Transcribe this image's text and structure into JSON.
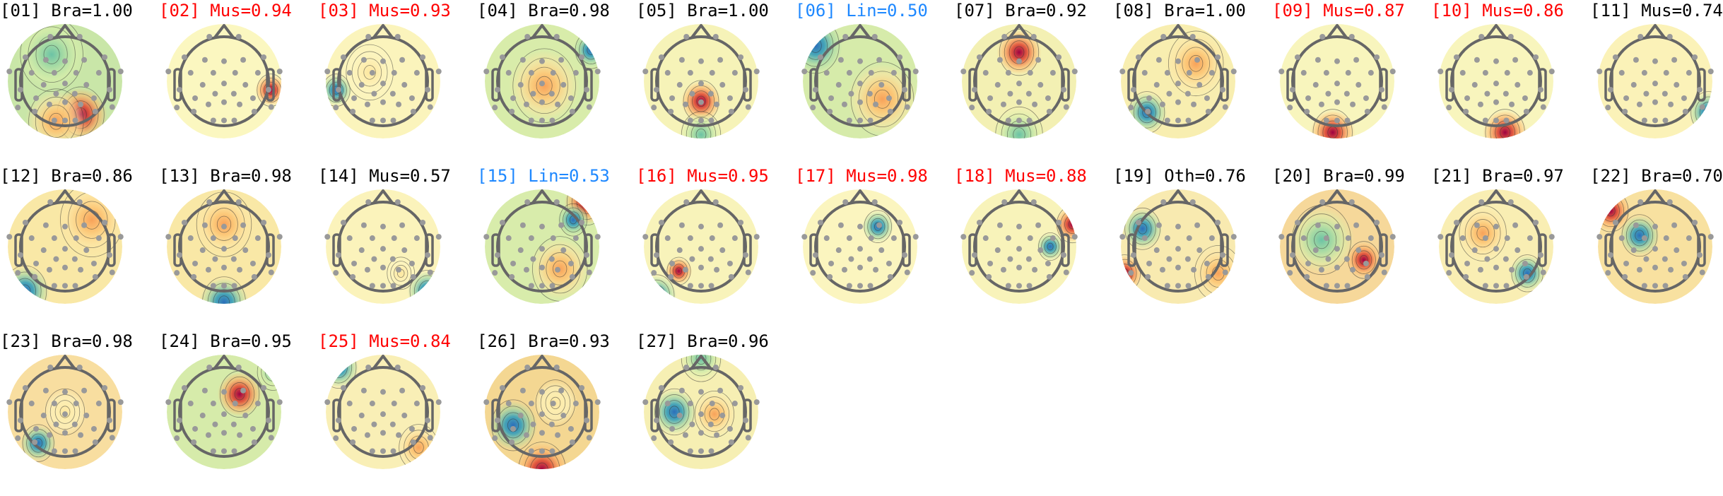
{
  "chart_data": {
    "type": "heatmap",
    "description_kind": "ICA component scalp topographies",
    "label_colors": {
      "black": "#000000",
      "red": "#ff0000",
      "blue": "#1e88ff"
    },
    "components": [
      {
        "title": "[01] Bra=1.00",
        "index": 1,
        "label": "Bra",
        "score": 1.0,
        "color": "#000000"
      },
      {
        "title": "[02] Mus=0.94",
        "index": 2,
        "label": "Mus",
        "score": 0.94,
        "color": "#ff0000"
      },
      {
        "title": "[03] Mus=0.93",
        "index": 3,
        "label": "Mus",
        "score": 0.93,
        "color": "#ff0000"
      },
      {
        "title": "[04] Bra=0.98",
        "index": 4,
        "label": "Bra",
        "score": 0.98,
        "color": "#000000"
      },
      {
        "title": "[05] Bra=1.00",
        "index": 5,
        "label": "Bra",
        "score": 1.0,
        "color": "#000000"
      },
      {
        "title": "[06] Lin=0.50",
        "index": 6,
        "label": "Lin",
        "score": 0.5,
        "color": "#1e88ff"
      },
      {
        "title": "[07] Bra=0.92",
        "index": 7,
        "label": "Bra",
        "score": 0.92,
        "color": "#000000"
      },
      {
        "title": "[08] Bra=1.00",
        "index": 8,
        "label": "Bra",
        "score": 1.0,
        "color": "#000000"
      },
      {
        "title": "[09] Mus=0.87",
        "index": 9,
        "label": "Mus",
        "score": 0.87,
        "color": "#ff0000"
      },
      {
        "title": "[10] Mus=0.86",
        "index": 10,
        "label": "Mus",
        "score": 0.86,
        "color": "#ff0000"
      },
      {
        "title": "[11] Mus=0.74",
        "index": 11,
        "label": "Mus",
        "score": 0.74,
        "color": "#000000"
      },
      {
        "title": "[12] Bra=0.86",
        "index": 12,
        "label": "Bra",
        "score": 0.86,
        "color": "#000000"
      },
      {
        "title": "[13] Bra=0.98",
        "index": 13,
        "label": "Bra",
        "score": 0.98,
        "color": "#000000"
      },
      {
        "title": "[14] Mus=0.57",
        "index": 14,
        "label": "Mus",
        "score": 0.57,
        "color": "#000000"
      },
      {
        "title": "[15] Lin=0.53",
        "index": 15,
        "label": "Lin",
        "score": 0.53,
        "color": "#1e88ff"
      },
      {
        "title": "[16] Mus=0.95",
        "index": 16,
        "label": "Mus",
        "score": 0.95,
        "color": "#ff0000"
      },
      {
        "title": "[17] Mus=0.98",
        "index": 17,
        "label": "Mus",
        "score": 0.98,
        "color": "#ff0000"
      },
      {
        "title": "[18] Mus=0.88",
        "index": 18,
        "label": "Mus",
        "score": 0.88,
        "color": "#ff0000"
      },
      {
        "title": "[19] Oth=0.76",
        "index": 19,
        "label": "Oth",
        "score": 0.76,
        "color": "#000000"
      },
      {
        "title": "[20] Bra=0.99",
        "index": 20,
        "label": "Bra",
        "score": 0.99,
        "color": "#000000"
      },
      {
        "title": "[21] Bra=0.97",
        "index": 21,
        "label": "Bra",
        "score": 0.97,
        "color": "#000000"
      },
      {
        "title": "[22] Bra=0.70",
        "index": 22,
        "label": "Bra",
        "score": 0.7,
        "color": "#000000"
      },
      {
        "title": "[23] Bra=0.98",
        "index": 23,
        "label": "Bra",
        "score": 0.98,
        "color": "#000000"
      },
      {
        "title": "[24] Bra=0.95",
        "index": 24,
        "label": "Bra",
        "score": 0.95,
        "color": "#000000"
      },
      {
        "title": "[25] Mus=0.84",
        "index": 25,
        "label": "Mus",
        "score": 0.84,
        "color": "#ff0000"
      },
      {
        "title": "[26] Bra=0.93",
        "index": 26,
        "label": "Bra",
        "score": 0.93,
        "color": "#000000"
      },
      {
        "title": "[27] Bra=0.96",
        "index": 27,
        "label": "Bra",
        "score": 0.96,
        "color": "#000000"
      }
    ]
  }
}
